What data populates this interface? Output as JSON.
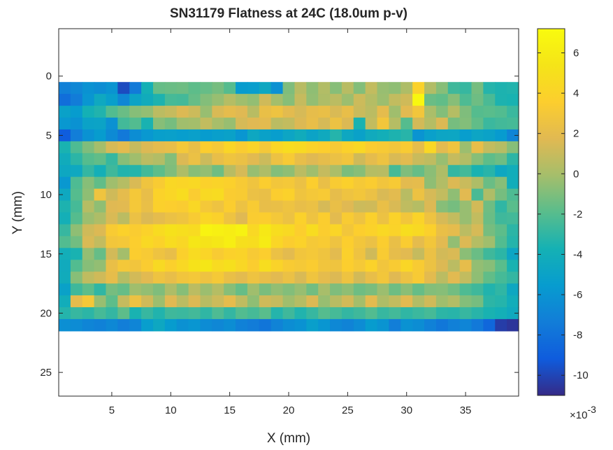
{
  "chart_data": {
    "type": "heatmap",
    "title": "SN31179 Flatness at 24C (18.0um p-v)",
    "xlabel": "X (mm)",
    "ylabel": "Y (mm)",
    "xlim": [
      0.5,
      39.5
    ],
    "ylim": [
      -4,
      27
    ],
    "y_direction": "reverse",
    "x_ticks": [
      5,
      10,
      15,
      20,
      25,
      30,
      35
    ],
    "y_ticks": [
      0,
      5,
      10,
      15,
      20,
      25
    ],
    "grid": false,
    "colormap": "parula",
    "colorbar": {
      "location": "right",
      "ticks": [
        6,
        4,
        2,
        0,
        -2,
        -4,
        -6,
        -8,
        -10
      ],
      "range": [
        -11,
        7.2
      ],
      "exponent_label": "×10",
      "exponent": "-3"
    },
    "grid_x": [
      1,
      39
    ],
    "grid_y": [
      1,
      21
    ],
    "z_scale": "x 1e-3",
    "z_rows": [
      [
        -7.2,
        -6.8,
        -6.1,
        -6.4,
        -6.0,
        -9.8,
        -7.5,
        -3.8,
        -1.6,
        -1.5,
        -1.4,
        -1.8,
        -1.6,
        -1.2,
        -2.0,
        -5.5,
        -5.4,
        -4.6,
        -6.2,
        -1.0,
        0.5,
        -0.6,
        0.3,
        -0.8,
        0.5,
        -0.9,
        0.8,
        -0.4,
        -0.6,
        0.2,
        3.9,
        0.3,
        -0.8,
        -2.6,
        -2.8,
        -1.2,
        -3.3,
        -3.5,
        -3.4
      ],
      [
        -8.2,
        -7.4,
        -5.9,
        -4.5,
        -5.3,
        -6.8,
        -4.9,
        -4.2,
        -3.5,
        -2.4,
        -2.5,
        -1.6,
        -0.9,
        -0.4,
        0.4,
        -0.2,
        -0.5,
        1.2,
        -0.1,
        -0.8,
        0.9,
        -0.5,
        0.2,
        0.6,
        -0.3,
        1.1,
        0.4,
        -0.3,
        0.8,
        1.2,
        6.9,
        -1.5,
        -1.7,
        -0.8,
        -2.2,
        -1.4,
        -2.3,
        -3.5,
        -3.6
      ],
      [
        -5.1,
        -5.5,
        -3.8,
        -3.4,
        -2.1,
        -1.5,
        -0.8,
        -0.5,
        0.6,
        0.9,
        1.6,
        1.1,
        -0.4,
        1.5,
        2.0,
        1.7,
        0.5,
        2.3,
        2.6,
        1.9,
        1.4,
        2.1,
        2.3,
        1.5,
        2.2,
        1.0,
        0.6,
        2.0,
        -0.2,
        1.8,
        2.9,
        0.1,
        -0.9,
        0.4,
        -1.0,
        -2.0,
        -1.9,
        -2.1,
        -2.7
      ],
      [
        -5.8,
        -6.1,
        -5.0,
        -4.9,
        -6.2,
        -2.5,
        -2.1,
        -3.6,
        -0.8,
        -1.2,
        -0.2,
        -0.1,
        0.8,
        0.0,
        -0.4,
        1.4,
        1.7,
        1.9,
        0.6,
        0.8,
        1.6,
        2.2,
        1.4,
        2.5,
        1.6,
        -3.6,
        0.8,
        2.9,
        0.4,
        -2.0,
        1.3,
        0.4,
        1.6,
        -1.2,
        -0.9,
        -1.7,
        -2.7,
        -2.5,
        -2.4
      ],
      [
        -9.1,
        -7.3,
        -6.1,
        -5.5,
        -6.6,
        -7.6,
        -6.4,
        -5.8,
        -5.3,
        -5.2,
        -5.4,
        -5.2,
        -5.5,
        -5.3,
        -5.1,
        -5.9,
        -4.6,
        -5.1,
        -5.4,
        -4.8,
        -4.2,
        -4.9,
        -4.4,
        -3.3,
        -4.6,
        -5.1,
        -4.3,
        -4.0,
        -3.5,
        -3.2,
        -6.0,
        -5.2,
        -4.8,
        -4.7,
        -5.4,
        -4.8,
        -5.0,
        -5.6,
        -6.9
      ],
      [
        -3.6,
        -2.2,
        -1.0,
        -0.1,
        1.4,
        1.9,
        0.9,
        1.6,
        2.0,
        2.2,
        3.0,
        2.3,
        3.5,
        3.1,
        4.1,
        3.4,
        4.0,
        3.0,
        4.2,
        4.7,
        4.5,
        3.9,
        3.6,
        3.2,
        3.8,
        4.3,
        3.4,
        3.2,
        2.9,
        3.3,
        2.1,
        4.3,
        1.9,
        2.7,
        -0.3,
        2.2,
        0.8,
        0.4,
        -0.8
      ],
      [
        -4.2,
        -3.1,
        -2.0,
        -1.7,
        -2.8,
        -0.8,
        -0.2,
        0.6,
        0.3,
        -0.9,
        1.6,
        2.4,
        1.1,
        2.2,
        2.7,
        2.4,
        1.8,
        1.1,
        2.5,
        3.2,
        2.2,
        1.7,
        2.1,
        2.4,
        2.8,
        1.2,
        2.0,
        2.6,
        1.5,
        1.9,
        1.0,
        0.7,
        -0.4,
        0.9,
        0.3,
        -0.8,
        -1.8,
        -1.4,
        -3.1
      ],
      [
        -4.6,
        -4.5,
        -2.9,
        -3.9,
        -2.6,
        -3.4,
        -3.3,
        -2.5,
        -1.8,
        -1.0,
        0.2,
        -0.8,
        -0.5,
        -1.4,
        0.5,
        1.4,
        -0.4,
        0.2,
        -0.9,
        -0.6,
        0.6,
        -0.2,
        0.9,
        0.1,
        -1.1,
        -0.8,
        0.4,
        0.5,
        -2.4,
        -1.0,
        -1.6,
        -0.7,
        0.2,
        -2.9,
        -2.5,
        -3.6,
        -3.2,
        -4.6,
        -4.1
      ],
      [
        -5.8,
        -2.2,
        -0.8,
        -1.7,
        -0.2,
        0.4,
        1.5,
        2.7,
        3.3,
        4.3,
        4.1,
        4.4,
        3.8,
        4.0,
        3.7,
        3.2,
        2.7,
        3.5,
        2.9,
        3.0,
        2.4,
        3.6,
        2.3,
        3.3,
        3.7,
        3.1,
        3.4,
        2.8,
        3.2,
        1.9,
        2.0,
        -0.6,
        0.3,
        1.6,
        1.0,
        0.2,
        -1.5,
        -0.8,
        -4.1
      ],
      [
        -4.5,
        -2.0,
        -0.6,
        2.7,
        1.2,
        2.0,
        3.0,
        2.2,
        3.9,
        4.2,
        4.7,
        3.4,
        4.5,
        4.6,
        3.4,
        3.3,
        2.4,
        2.3,
        3.5,
        3.8,
        2.7,
        3.0,
        3.2,
        2.1,
        2.6,
        2.9,
        2.4,
        1.5,
        1.9,
        0.5,
        2.5,
        1.4,
        0.8,
        -0.6,
        1.8,
        -2.3,
        0.2,
        -1.2,
        -2.2
      ],
      [
        -3.5,
        -2.4,
        0.4,
        -0.6,
        1.7,
        1.8,
        3.0,
        2.3,
        3.7,
        3.6,
        3.4,
        4.3,
        3.0,
        2.6,
        3.5,
        2.5,
        3.3,
        2.2,
        2.3,
        2.6,
        2.2,
        2.4,
        1.4,
        2.3,
        1.7,
        1.1,
        1.2,
        2.3,
        1.5,
        0.7,
        0.4,
        1.6,
        -0.8,
        -1.2,
        -0.4,
        1.3,
        -1.4,
        -3.0,
        -1.9
      ],
      [
        -3.9,
        -2.0,
        -0.3,
        0.2,
        1.5,
        0.6,
        2.4,
        1.6,
        2.0,
        2.4,
        2.7,
        3.3,
        4.2,
        3.8,
        2.6,
        1.7,
        3.4,
        3.5,
        3.0,
        2.5,
        3.8,
        2.6,
        3.5,
        1.9,
        3.3,
        2.6,
        3.7,
        2.5,
        3.9,
        2.9,
        4.0,
        2.6,
        1.4,
        0.8,
        -0.4,
        0.8,
        -1.5,
        -2.6,
        -2.5
      ],
      [
        -2.8,
        -0.6,
        1.2,
        1.6,
        3.3,
        3.8,
        3.4,
        3.9,
        4.6,
        5.1,
        4.9,
        4.6,
        6.6,
        6.3,
        6.1,
        6.5,
        4.4,
        5.7,
        4.8,
        4.5,
        3.6,
        4.7,
        3.5,
        4.1,
        2.9,
        3.6,
        3.9,
        4.4,
        4.0,
        4.8,
        4.5,
        3.7,
        2.3,
        2.0,
        0.6,
        1.4,
        -1.2,
        -1.8,
        -3.1
      ],
      [
        -2.1,
        -1.3,
        1.5,
        0.8,
        2.9,
        3.0,
        3.6,
        4.4,
        3.9,
        4.7,
        4.3,
        5.5,
        5.3,
        5.6,
        6.2,
        5.0,
        4.8,
        5.9,
        4.2,
        3.5,
        3.9,
        3.1,
        3.3,
        2.6,
        3.6,
        2.9,
        2.4,
        3.5,
        2.3,
        3.4,
        2.0,
        2.9,
        1.8,
        -0.5,
        1.6,
        0.4,
        -0.2,
        -2.1,
        -3.3
      ],
      [
        -4.0,
        -3.6,
        -0.5,
        -1.6,
        1.3,
        -0.1,
        3.5,
        3.2,
        2.6,
        2.2,
        3.7,
        4.6,
        4.1,
        3.3,
        3.8,
        4.0,
        3.2,
        3.6,
        2.4,
        1.9,
        2.8,
        3.0,
        2.7,
        1.9,
        3.7,
        2.6,
        1.2,
        3.3,
        2.1,
        1.8,
        0.9,
        2.4,
        1.3,
        1.5,
        -0.7,
        -1.5,
        -2.6,
        -3.1,
        -4.8
      ],
      [
        -4.3,
        -2.1,
        -0.8,
        -0.5,
        2.3,
        3.0,
        2.8,
        3.4,
        4.5,
        3.7,
        4.4,
        5.2,
        5.5,
        4.6,
        5.0,
        4.3,
        3.5,
        4.8,
        4.0,
        3.3,
        3.1,
        3.4,
        2.8,
        2.7,
        3.6,
        3.1,
        3.9,
        2.8,
        3.3,
        4.2,
        3.3,
        2.5,
        1.6,
        0.6,
        2.1,
        -0.5,
        -0.8,
        -1.9,
        -3.6
      ],
      [
        -4.2,
        -0.8,
        0.7,
        1.2,
        2.1,
        0.4,
        1.3,
        1.8,
        2.6,
        2.2,
        2.8,
        3.0,
        2.6,
        3.1,
        2.3,
        1.9,
        2.6,
        2.2,
        1.8,
        2.4,
        1.5,
        2.7,
        2.0,
        1.6,
        2.6,
        1.3,
        2.2,
        2.9,
        1.7,
        2.5,
        3.2,
        1.9,
        0.6,
        1.8,
        0.8,
        -0.6,
        -1.7,
        -2.4,
        -2.9
      ],
      [
        -5.1,
        -2.6,
        -1.8,
        -3.0,
        -1.2,
        -1.6,
        -0.2,
        -0.5,
        -1.0,
        0.2,
        -0.8,
        0.6,
        -0.3,
        0.4,
        -0.8,
        -1.6,
        -0.2,
        -1.1,
        -0.5,
        -0.9,
        -0.4,
        -1.3,
        0.0,
        -1.0,
        -0.6,
        -1.4,
        -1.1,
        -0.3,
        -1.4,
        -0.7,
        -1.6,
        -0.9,
        -0.8,
        -1.3,
        -2.2,
        -2.6,
        -3.4,
        -3.0,
        -4.6
      ],
      [
        -4.1,
        2.0,
        3.0,
        -0.4,
        -1.8,
        0.9,
        2.5,
        1.2,
        -0.3,
        1.7,
        0.6,
        1.6,
        0.5,
        1.1,
        2.0,
        0.7,
        -0.6,
        1.2,
        0.9,
        -0.2,
        0.4,
        1.6,
        -0.4,
        0.5,
        1.3,
        -0.1,
        1.9,
        0.2,
        0.8,
        1.8,
        0.3,
        1.2,
        -0.2,
        0.3,
        -0.9,
        -1.2,
        -3.1,
        -3.3,
        -4.1
      ],
      [
        -3.3,
        -2.8,
        -3.1,
        -2.4,
        -2.9,
        -1.8,
        -3.6,
        -2.8,
        -3.4,
        -2.6,
        -2.7,
        -2.5,
        -3.0,
        -2.2,
        -2.9,
        -2.1,
        -2.4,
        -1.9,
        -3.3,
        -2.6,
        -3.4,
        -2.8,
        -2.0,
        -2.4,
        -2.9,
        -2.6,
        -2.1,
        -2.8,
        -2.5,
        -3.0,
        -2.7,
        -2.4,
        -3.1,
        -3.2,
        -2.8,
        -3.2,
        -3.6,
        -3.9,
        -4.4
      ],
      [
        -6.3,
        -6.5,
        -6.9,
        -7.1,
        -6.7,
        -7.3,
        -6.9,
        -5.4,
        -4.6,
        -5.5,
        -6.2,
        -5.9,
        -6.5,
        -6.8,
        -6.4,
        -7.1,
        -7.4,
        -7.8,
        -7.0,
        -6.4,
        -6.1,
        -5.3,
        -5.9,
        -6.7,
        -7.0,
        -6.5,
        -5.5,
        -6.0,
        -7.3,
        -6.1,
        -6.4,
        -7.1,
        -7.7,
        -7.2,
        -6.9,
        -7.6,
        -8.6,
        -10.3,
        -10.6
      ]
    ]
  }
}
